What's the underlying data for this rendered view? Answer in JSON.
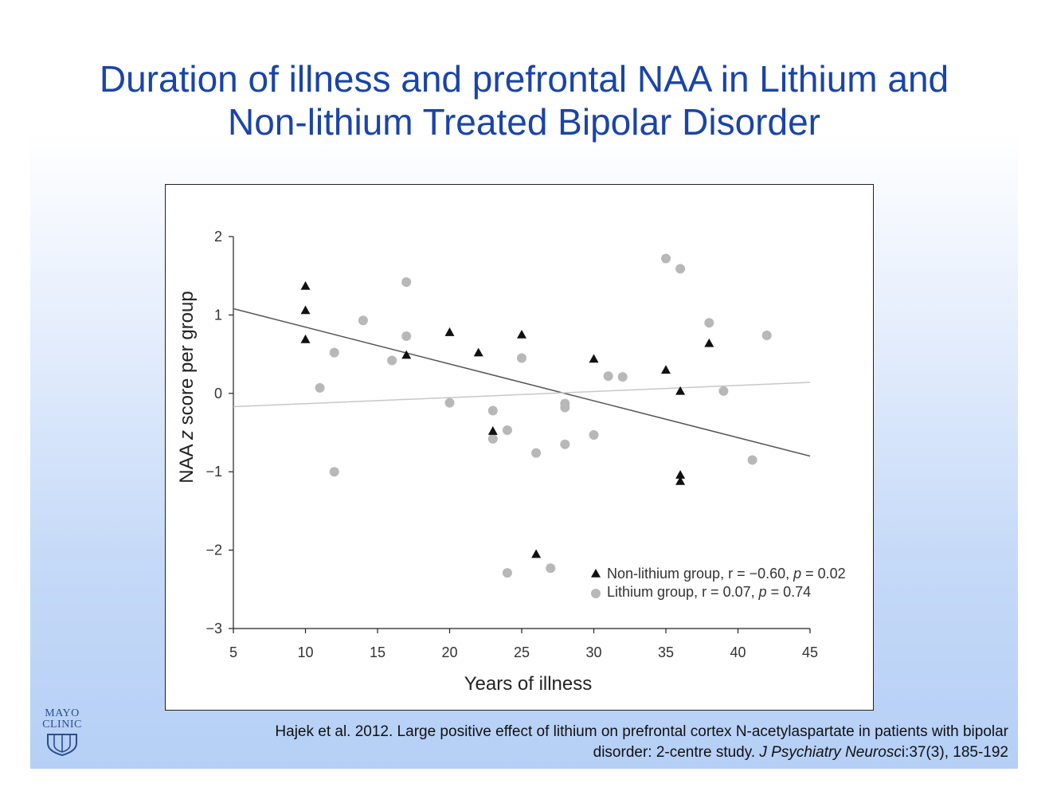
{
  "title": {
    "line1": "Duration of illness and prefrontal NAA in Lithium and",
    "line2": "Non-lithium Treated Bipolar Disorder"
  },
  "citation": {
    "line1": "Hajek et al. 2012. Large positive effect of lithium on prefrontal cortex N-acetylaspartate in patients with bipolar",
    "line2_prefix": "disorder: 2-centre study. ",
    "line2_journal": "J Psychiatry Neurosc",
    "line2_suffix": "i:37(3), 185-192"
  },
  "logo": {
    "word1": "MAYO",
    "word2": "CLINIC"
  },
  "colors": {
    "title": "#1a44a8",
    "non_lithium": "#111111",
    "lithium": "#b8b8b8"
  },
  "chart_data": {
    "type": "scatter",
    "xlabel": "Years of illness",
    "ylabel_prefix": "NAA ",
    "ylabel_italic": "z",
    "ylabel_suffix": " score per group",
    "xlim": [
      5,
      45
    ],
    "ylim": [
      -3,
      2
    ],
    "xticks": [
      5,
      10,
      15,
      20,
      25,
      30,
      35,
      40,
      45
    ],
    "yticks": [
      -3,
      -2,
      -1,
      0,
      1,
      2
    ],
    "xtick_labels": [
      "5",
      "10",
      "15",
      "20",
      "25",
      "30",
      "35",
      "40",
      "45"
    ],
    "ytick_labels": [
      "−3",
      "−2",
      "−1",
      "0",
      "1",
      "2"
    ],
    "legend_position": "bottom-right",
    "series": [
      {
        "marker": "triangle",
        "color": "#111111",
        "legend": {
          "label_a": "Non-lithium group, r = −0.60, ",
          "label_p": "p",
          "label_b": " = 0.02"
        },
        "points": [
          [
            10,
            1.37
          ],
          [
            10,
            1.06
          ],
          [
            10,
            0.69
          ],
          [
            17,
            0.49
          ],
          [
            20,
            0.78
          ],
          [
            22,
            0.52
          ],
          [
            23,
            -0.48
          ],
          [
            25,
            0.75
          ],
          [
            26,
            -2.05
          ],
          [
            30,
            0.44
          ],
          [
            35,
            0.3
          ],
          [
            36,
            0.03
          ],
          [
            36,
            -1.04
          ],
          [
            36,
            -1.12
          ],
          [
            38,
            0.64
          ]
        ],
        "fit": {
          "x": [
            5,
            45
          ],
          "y": [
            1.08,
            -0.8
          ]
        }
      },
      {
        "marker": "circle",
        "color": "#b8b8b8",
        "legend": {
          "label_a": "Lithium group, r = 0.07, ",
          "label_p": "p",
          "label_b": " = 0.74"
        },
        "points": [
          [
            11,
            0.07
          ],
          [
            12,
            0.52
          ],
          [
            12,
            -1.0
          ],
          [
            14,
            0.93
          ],
          [
            16,
            0.42
          ],
          [
            17,
            1.42
          ],
          [
            17,
            0.73
          ],
          [
            20,
            -0.12
          ],
          [
            23,
            -0.22
          ],
          [
            23,
            -0.58
          ],
          [
            24,
            -0.47
          ],
          [
            24,
            -2.29
          ],
          [
            25,
            0.45
          ],
          [
            26,
            -0.76
          ],
          [
            27,
            -2.23
          ],
          [
            28,
            -0.13
          ],
          [
            28,
            -0.18
          ],
          [
            28,
            -0.65
          ],
          [
            30,
            -0.53
          ],
          [
            31,
            0.22
          ],
          [
            32,
            0.21
          ],
          [
            35,
            1.72
          ],
          [
            36,
            1.59
          ],
          [
            38,
            0.9
          ],
          [
            39,
            0.03
          ],
          [
            41,
            -0.85
          ],
          [
            42,
            0.74
          ]
        ],
        "fit": {
          "x": [
            5,
            45
          ],
          "y": [
            -0.17,
            0.14
          ]
        }
      }
    ]
  }
}
